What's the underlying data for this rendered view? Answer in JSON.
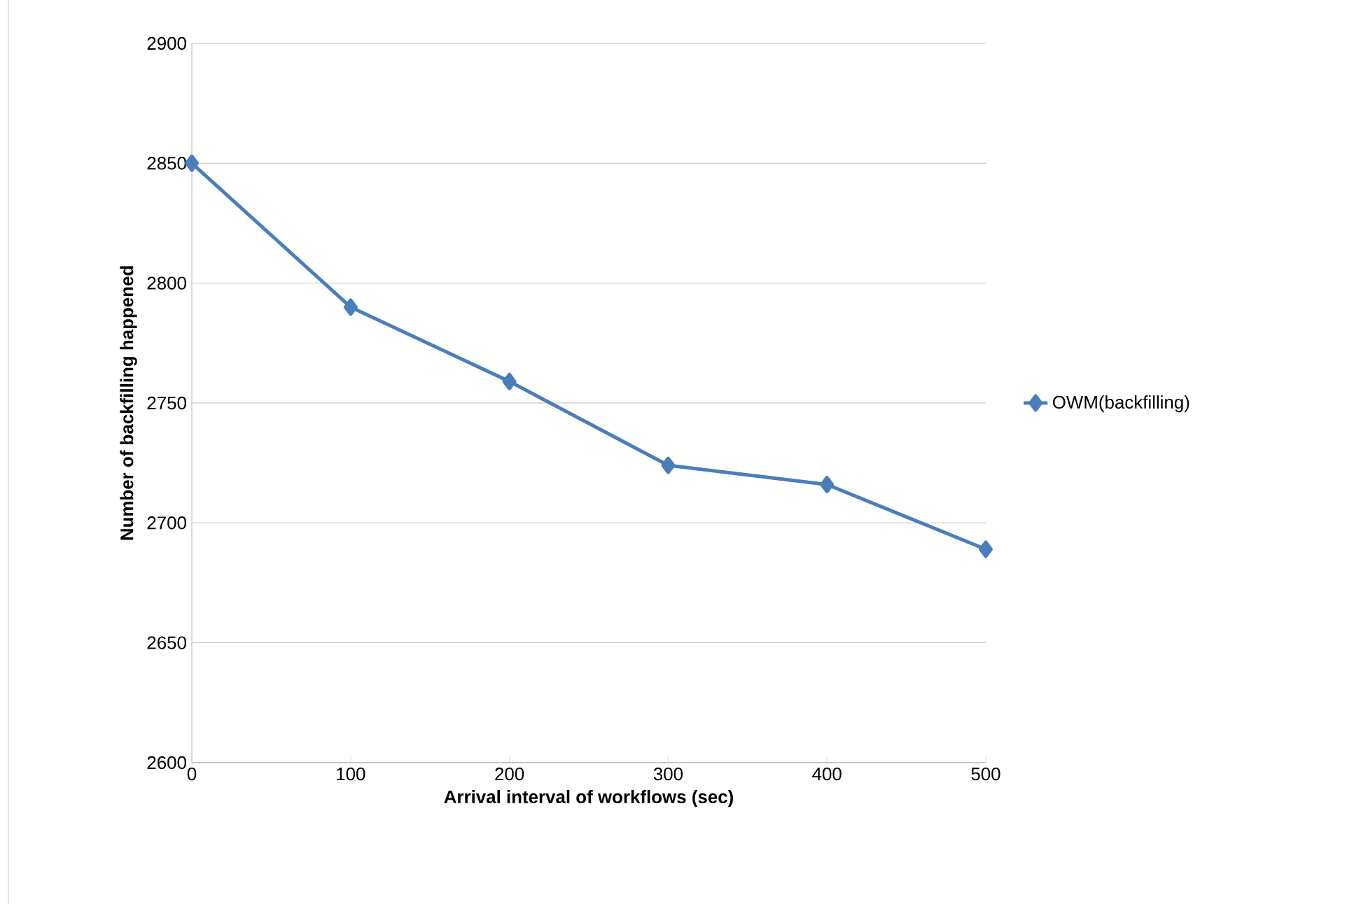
{
  "chart_data": {
    "type": "line",
    "xlabel": "Arrival interval of workflows (sec)",
    "ylabel": "Number of backfilling happened",
    "x": [
      0,
      100,
      200,
      300,
      400,
      500
    ],
    "series": [
      {
        "name": "OWM(backfilling)",
        "color": "#4a7ebb",
        "values": [
          2850,
          2790,
          2759,
          2724,
          2716,
          2689
        ]
      }
    ],
    "xlim": [
      0,
      500
    ],
    "xticks": [
      0,
      100,
      200,
      300,
      400,
      500
    ],
    "ylim": [
      2600,
      2900
    ],
    "yticks": [
      2600,
      2650,
      2700,
      2750,
      2800,
      2850,
      2900
    ],
    "grid": "y",
    "legend": "right",
    "marker": "diamond",
    "line_style": "solid"
  }
}
